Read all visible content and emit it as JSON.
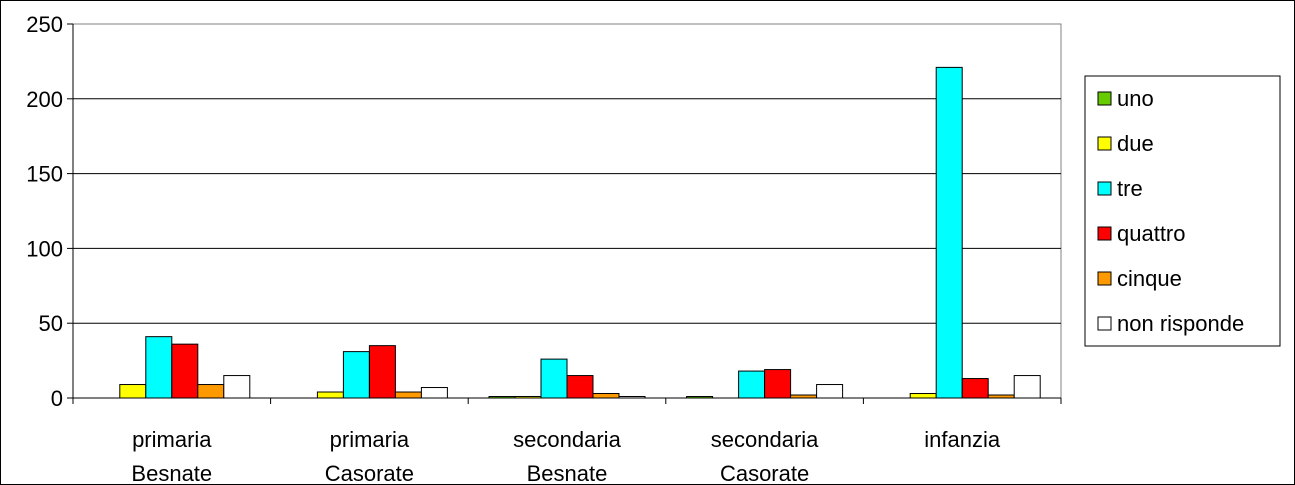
{
  "chart_data": {
    "type": "bar",
    "title": "",
    "xlabel": "",
    "ylabel": "",
    "ylim": [
      0,
      250
    ],
    "yticks": [
      0,
      50,
      100,
      150,
      200,
      250
    ],
    "grid": true,
    "legend_position": "right",
    "categories": [
      [
        "primaria",
        "Besnate"
      ],
      [
        "primaria",
        "Casorate"
      ],
      [
        "secondaria",
        "Besnate"
      ],
      [
        "secondaria",
        "Casorate"
      ],
      [
        "infanzia"
      ]
    ],
    "series": [
      {
        "name": "uno",
        "color": "#66cc00",
        "values": [
          0,
          0,
          1,
          1,
          0
        ]
      },
      {
        "name": "due",
        "color": "#ffff00",
        "values": [
          9,
          4,
          1,
          0,
          3
        ]
      },
      {
        "name": "tre",
        "color": "#00ffff",
        "values": [
          41,
          31,
          26,
          18,
          221
        ]
      },
      {
        "name": "quattro",
        "color": "#ff0000",
        "values": [
          36,
          35,
          15,
          19,
          13
        ]
      },
      {
        "name": "cinque",
        "color": "#ff9900",
        "values": [
          9,
          4,
          3,
          2,
          2
        ]
      },
      {
        "name": "non risponde",
        "color": "#ffffff",
        "values": [
          15,
          7,
          1,
          9,
          15
        ]
      }
    ]
  }
}
